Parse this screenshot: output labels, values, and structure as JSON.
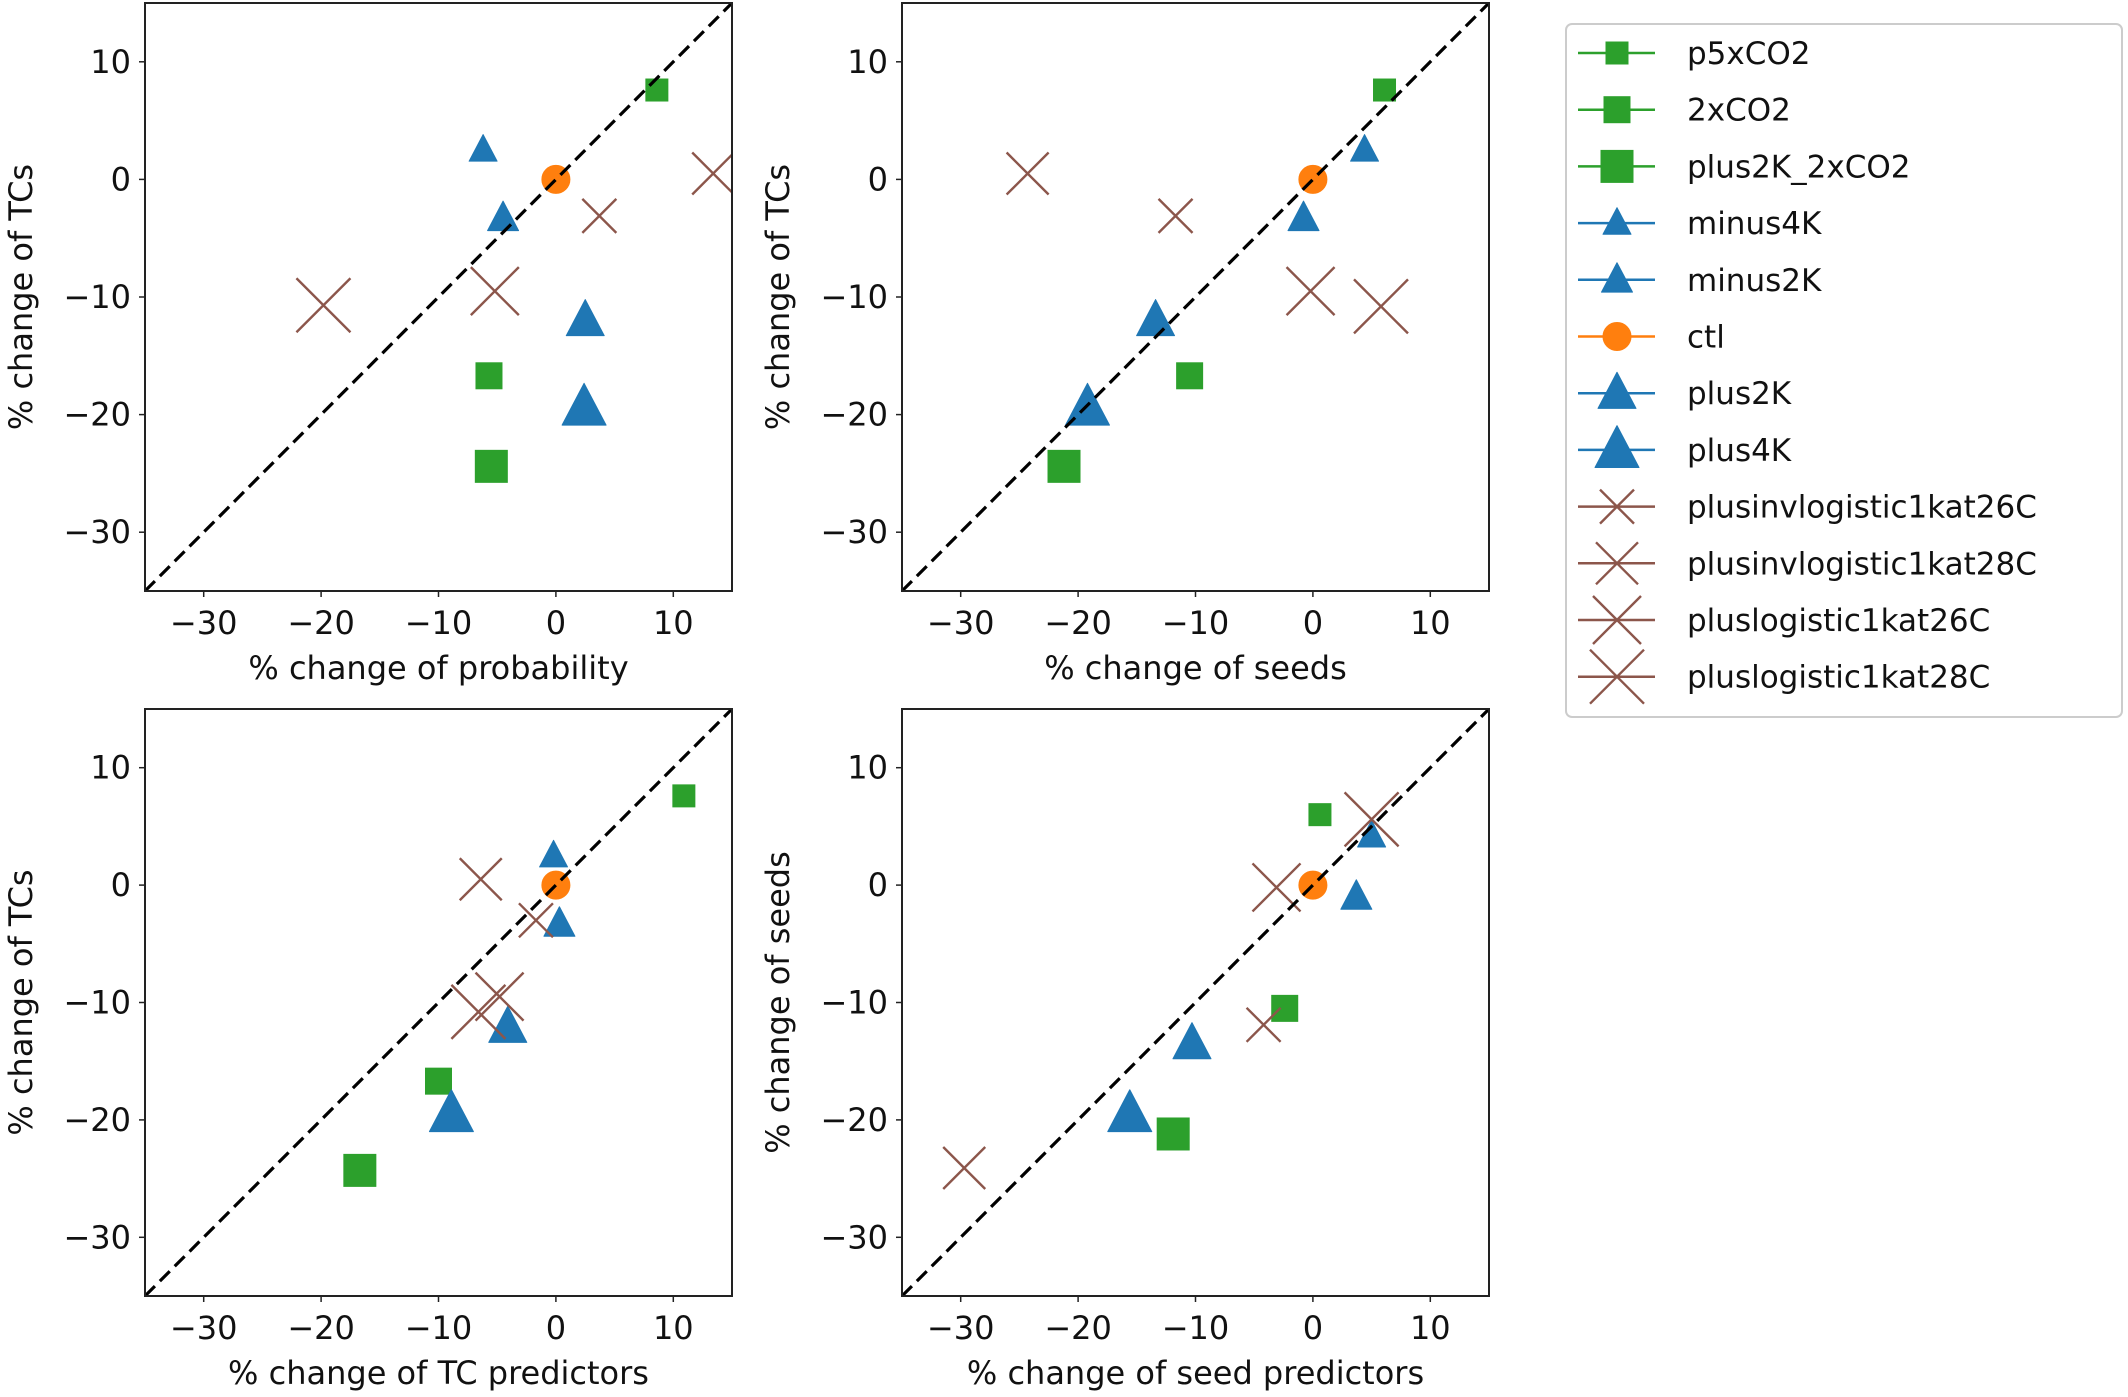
{
  "chart_data": {
    "type": "scatter",
    "series_styles": [
      {
        "name": "p5xCO2",
        "marker": "square",
        "size_rank": 1,
        "color": "#2ca02c"
      },
      {
        "name": "2xCO2",
        "marker": "square",
        "size_rank": 2,
        "color": "#2ca02c"
      },
      {
        "name": "plus2K_2xCO2",
        "marker": "square",
        "size_rank": 3,
        "color": "#2ca02c"
      },
      {
        "name": "minus4K",
        "marker": "triangle",
        "size_rank": 1,
        "color": "#1f77b4"
      },
      {
        "name": "minus2K",
        "marker": "triangle",
        "size_rank": 2,
        "color": "#1f77b4"
      },
      {
        "name": "ctl",
        "marker": "circle",
        "size_rank": 2,
        "color": "#ff7f0e"
      },
      {
        "name": "plus2K",
        "marker": "triangle",
        "size_rank": 3,
        "color": "#1f77b4"
      },
      {
        "name": "plus4K",
        "marker": "triangle",
        "size_rank": 4,
        "color": "#1f77b4"
      },
      {
        "name": "plusinvlogistic1kat26C",
        "marker": "x",
        "size_rank": 1,
        "color": "#8c564b"
      },
      {
        "name": "plusinvlogistic1kat28C",
        "marker": "x",
        "size_rank": 2,
        "color": "#8c564b"
      },
      {
        "name": "pluslogistic1kat26C",
        "marker": "x",
        "size_rank": 3,
        "color": "#8c564b"
      },
      {
        "name": "pluslogistic1kat28C",
        "marker": "x",
        "size_rank": 4,
        "color": "#8c564b"
      }
    ],
    "legend": {
      "placement": "right",
      "entries": [
        "p5xCO2",
        "2xCO2",
        "plus2K_2xCO2",
        "minus4K",
        "minus2K",
        "ctl",
        "plus2K",
        "plus4K",
        "plusinvlogistic1kat26C",
        "plusinvlogistic1kat28C",
        "pluslogistic1kat26C",
        "pluslogistic1kat28C"
      ]
    },
    "panels": [
      {
        "position": "top-left",
        "xlabel": "% change of probability",
        "ylabel": "% change of TCs",
        "xlim": [
          -35,
          15
        ],
        "ylim": [
          -35,
          15
        ],
        "xticks": [
          -30,
          -20,
          -10,
          0,
          10
        ],
        "yticks": [
          10,
          0,
          -10,
          -20,
          -30
        ],
        "xtick_labels": [
          "−30",
          "−20",
          "−10",
          "0",
          "10"
        ],
        "ytick_labels": [
          "10",
          "0",
          "−10",
          "−20",
          "−30"
        ],
        "one_to_one_line": true,
        "points": {
          "p5xCO2": [
            8.6,
            7.6
          ],
          "2xCO2": [
            -5.7,
            -16.7
          ],
          "plus2K_2xCO2": [
            -5.5,
            -24.4
          ],
          "minus4K": [
            -6.2,
            2.5
          ],
          "minus2K": [
            -4.5,
            -3.3
          ],
          "ctl": [
            0,
            0
          ],
          "plus2K": [
            2.5,
            -12.0
          ],
          "plus4K": [
            2.4,
            -19.4
          ],
          "plusinvlogistic1kat26C": [
            3.7,
            -3.1
          ],
          "plusinvlogistic1kat28C": [
            13.4,
            0.5
          ],
          "pluslogistic1kat26C": [
            -5.2,
            -9.5
          ],
          "pluslogistic1kat28C": [
            -19.8,
            -10.7
          ]
        }
      },
      {
        "position": "top-right",
        "xlabel": "% change of seeds",
        "ylabel": "% change of TCs",
        "xlim": [
          -35,
          15
        ],
        "ylim": [
          -35,
          15
        ],
        "xticks": [
          -30,
          -20,
          -10,
          0,
          10
        ],
        "yticks": [
          10,
          0,
          -10,
          -20,
          -30
        ],
        "xtick_labels": [
          "−30",
          "−20",
          "−10",
          "0",
          "10"
        ],
        "ytick_labels": [
          "10",
          "0",
          "−10",
          "−20",
          "−30"
        ],
        "one_to_one_line": true,
        "points": {
          "p5xCO2": [
            6.1,
            7.6
          ],
          "2xCO2": [
            -10.5,
            -16.7
          ],
          "plus2K_2xCO2": [
            -21.2,
            -24.4
          ],
          "minus4K": [
            4.4,
            2.5
          ],
          "minus2K": [
            -0.8,
            -3.3
          ],
          "ctl": [
            0,
            0
          ],
          "plus2K": [
            -13.4,
            -12.0
          ],
          "plus4K": [
            -19.2,
            -19.4
          ],
          "plusinvlogistic1kat26C": [
            -11.7,
            -3.1
          ],
          "plusinvlogistic1kat28C": [
            -24.3,
            0.5
          ],
          "pluslogistic1kat26C": [
            -0.2,
            -9.5
          ],
          "pluslogistic1kat28C": [
            5.8,
            -10.8
          ]
        }
      },
      {
        "position": "bottom-left",
        "xlabel": "% change of TC predictors",
        "ylabel": "% change of TCs",
        "xlim": [
          -35,
          15
        ],
        "ylim": [
          -35,
          15
        ],
        "xticks": [
          -30,
          -20,
          -10,
          0,
          10
        ],
        "yticks": [
          10,
          0,
          -10,
          -20,
          -30
        ],
        "xtick_labels": [
          "−30",
          "−20",
          "−10",
          "0",
          "10"
        ],
        "ytick_labels": [
          "10",
          "0",
          "−10",
          "−20",
          "−30"
        ],
        "one_to_one_line": true,
        "points": {
          "p5xCO2": [
            10.9,
            7.6
          ],
          "2xCO2": [
            -10.0,
            -16.7
          ],
          "plus2K_2xCO2": [
            -16.7,
            -24.3
          ],
          "minus4K": [
            -0.2,
            2.5
          ],
          "minus2K": [
            0.3,
            -3.3
          ],
          "ctl": [
            0,
            0
          ],
          "plus2K": [
            -4.1,
            -12.1
          ],
          "plus4K": [
            -8.9,
            -19.5
          ],
          "plusinvlogistic1kat26C": [
            -1.7,
            -3.0
          ],
          "plusinvlogistic1kat28C": [
            -6.4,
            0.5
          ],
          "pluslogistic1kat26C": [
            -4.8,
            -9.5
          ],
          "pluslogistic1kat28C": [
            -6.6,
            -10.8
          ]
        }
      },
      {
        "position": "bottom-right",
        "xlabel": "% change of seed predictors",
        "ylabel": "% change of seeds",
        "xlim": [
          -35,
          15
        ],
        "ylim": [
          -35,
          15
        ],
        "xticks": [
          -30,
          -20,
          -10,
          0,
          10
        ],
        "yticks": [
          10,
          0,
          -10,
          -20,
          -30
        ],
        "xtick_labels": [
          "−30",
          "−20",
          "−10",
          "0",
          "10"
        ],
        "ytick_labels": [
          "10",
          "0",
          "−10",
          "−20",
          "−30"
        ],
        "one_to_one_line": true,
        "points": {
          "p5xCO2": [
            0.6,
            6.0
          ],
          "2xCO2": [
            -2.4,
            -10.5
          ],
          "plus2K_2xCO2": [
            -11.9,
            -21.2
          ],
          "minus4K": [
            5.0,
            4.2
          ],
          "minus2K": [
            3.7,
            -1.0
          ],
          "ctl": [
            0,
            0
          ],
          "plus2K": [
            -10.3,
            -13.5
          ],
          "plus4K": [
            -15.6,
            -19.5
          ],
          "plusinvlogistic1kat26C": [
            -4.2,
            -11.9
          ],
          "plusinvlogistic1kat28C": [
            -29.7,
            -24.1
          ],
          "pluslogistic1kat26C": [
            -3.1,
            -0.2
          ],
          "pluslogistic1kat28C": [
            5.0,
            5.6
          ]
        }
      }
    ]
  }
}
